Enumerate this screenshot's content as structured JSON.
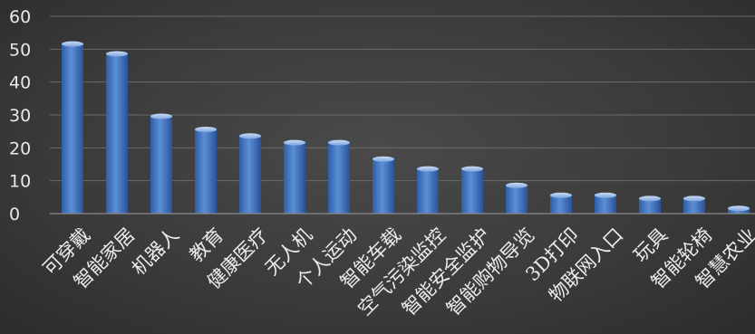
{
  "chart_data": {
    "type": "bar",
    "categories": [
      "可穿戴",
      "智能家居",
      "机器人",
      "教育",
      "健康医疗",
      "无人机",
      "个人运动",
      "智能车载",
      "空气污染监控",
      "智能安全监护",
      "智能购物导览",
      "3D打印",
      "物联网入口",
      "玩具",
      "智能轮椅",
      "智慧农业"
    ],
    "values": [
      52,
      49,
      30,
      26,
      24,
      22,
      22,
      17,
      14,
      14,
      9,
      6,
      6,
      5,
      5,
      2
    ],
    "ylim": [
      0,
      60
    ],
    "yticks": [
      0,
      10,
      20,
      30,
      40,
      50,
      60
    ],
    "grid": true,
    "legend": "none",
    "bar_color": "#4a78c0"
  }
}
